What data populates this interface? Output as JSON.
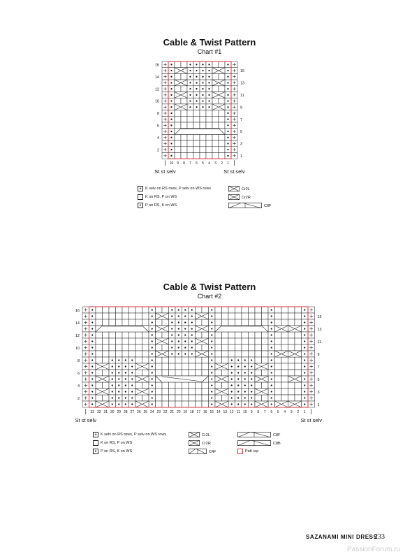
{
  "charts": [
    {
      "title": "Cable & Twist Pattern",
      "subtitle": "Chart #1",
      "columns": [
        "10",
        "9",
        "8",
        "7",
        "6",
        "5",
        "4",
        "3",
        "2",
        "1"
      ],
      "row_labels_left": [
        "16",
        "14",
        "12",
        "10",
        "8",
        "6",
        "4",
        "2"
      ],
      "row_labels_right": [
        "15",
        "13",
        "11",
        "9",
        "7",
        "5",
        "3",
        "1"
      ],
      "selv_label_left": "St st selv",
      "selv_label_right": "St st selv",
      "rows_top_to_bottom": [
        "+o..oooo..o+",
        "+o..oooo..o+",
        "+o..oooo..o+",
        "+o..oooo..o+",
        "+o..oooo..o+",
        "+o..oooo..o+",
        "+o..oooo..o+",
        "+o..oooo..o+",
        "+o........o+",
        "+o........o+",
        "+o........o+",
        "+o........o+",
        "+o........o+",
        "+o........o+",
        "+o........o+",
        "+o........o+"
      ],
      "cables": [
        {
          "row": 15,
          "from": 9,
          "to": 8,
          "type": "Cr2"
        },
        {
          "row": 15,
          "from": 3,
          "to": 2,
          "type": "Cr2"
        },
        {
          "row": 13,
          "from": 9,
          "to": 8,
          "type": "Cr2"
        },
        {
          "row": 13,
          "from": 3,
          "to": 2,
          "type": "Cr2"
        },
        {
          "row": 11,
          "from": 9,
          "to": 8,
          "type": "Cr2"
        },
        {
          "row": 11,
          "from": 3,
          "to": 2,
          "type": "Cr2"
        },
        {
          "row": 9,
          "from": 9,
          "to": 8,
          "type": "Cr2"
        },
        {
          "row": 9,
          "from": 3,
          "to": 2,
          "type": "Cr2"
        },
        {
          "row": 5,
          "from": 9,
          "to": 2,
          "type": "C8F"
        }
      ],
      "patt_rep": {
        "from": 10,
        "to": 1
      },
      "legend": [
        {
          "symbol": "selv",
          "label": "K selv on RS rows, P selv on WS rows"
        },
        {
          "symbol": "knit",
          "label": "K on RS, P on WS"
        },
        {
          "symbol": "purl",
          "label": "P on RS, K on WS"
        },
        {
          "symbol": "cr2",
          "label": "Cr2L"
        },
        {
          "symbol": "cr2",
          "label": "Cr2R"
        },
        {
          "symbol": "c8",
          "label": "C8F"
        }
      ]
    },
    {
      "title": "Cable & Twist Pattern",
      "subtitle": "Chart #2",
      "columns": [
        "33",
        "32",
        "31",
        "30",
        "29",
        "28",
        "27",
        "26",
        "25",
        "24",
        "23",
        "22",
        "21",
        "20",
        "19",
        "18",
        "17",
        "16",
        "15",
        "14",
        "13",
        "12",
        "11",
        "10",
        "9",
        "8",
        "7",
        "6",
        "5",
        "4",
        "3",
        "2",
        "1"
      ],
      "row_labels_left": [
        "16",
        "14",
        "12",
        "10",
        "8",
        "6",
        "4",
        "2"
      ],
      "row_labels_right": [
        "15",
        "13",
        "11",
        "9",
        "7",
        "5",
        "3",
        "1"
      ],
      "selv_label_left": "St st selv",
      "selv_label_right": "St st selv",
      "rows_top_to_bottom": [
        "+o........o..oooo..o........o....o+",
        "+o........o..oooo..o........o....o+",
        "+o........o..oooo..o........o....o+",
        "+o........o..oooo..o........o....o+",
        "+o........o..oooo..o........o....o+",
        "+o........o..oooo..o........o....o+",
        "+o........o..oooo..o........o....o+",
        "+o........o..oooo..o........o....o+",
        "+o..oooo..o........o..oooo..o....o+",
        "+o..oooo..o........o..oooo..o....o+",
        "+o..oooo..o........o..oooo..o....o+",
        "+o..oooo..o........o..oooo..o....o+",
        "+o..oooo..o........o..oooo..o....o+",
        "+o..oooo..o........o..oooo..o....o+",
        "+o..oooo..o........o..oooo..o....o+",
        "+o..oooo..o........o..oooo..o....o+"
      ],
      "cables": [
        {
          "row": 15,
          "from": 23,
          "to": 22,
          "type": "Cr2"
        },
        {
          "row": 15,
          "from": 17,
          "to": 16,
          "type": "Cr2"
        },
        {
          "row": 13,
          "from": 32,
          "to": 25,
          "type": "C8F"
        },
        {
          "row": 13,
          "from": 23,
          "to": 22,
          "type": "Cr2"
        },
        {
          "row": 13,
          "from": 17,
          "to": 16,
          "type": "Cr2"
        },
        {
          "row": 13,
          "from": 14,
          "to": 7,
          "type": "C8F"
        },
        {
          "row": 13,
          "from": 5,
          "to": 4,
          "type": "Cr2"
        },
        {
          "row": 13,
          "from": 3,
          "to": 2,
          "type": "Cr2"
        },
        {
          "row": 11,
          "from": 23,
          "to": 22,
          "type": "Cr2"
        },
        {
          "row": 11,
          "from": 17,
          "to": 16,
          "type": "Cr2"
        },
        {
          "row": 9,
          "from": 23,
          "to": 22,
          "type": "Cr2"
        },
        {
          "row": 9,
          "from": 17,
          "to": 16,
          "type": "Cr2"
        },
        {
          "row": 9,
          "from": 5,
          "to": 4,
          "type": "Cr2"
        },
        {
          "row": 9,
          "from": 3,
          "to": 2,
          "type": "Cr2"
        },
        {
          "row": 7,
          "from": 32,
          "to": 31,
          "type": "Cr2"
        },
        {
          "row": 7,
          "from": 26,
          "to": 25,
          "type": "Cr2"
        },
        {
          "row": 7,
          "from": 14,
          "to": 13,
          "type": "Cr2"
        },
        {
          "row": 7,
          "from": 8,
          "to": 7,
          "type": "Cr2"
        },
        {
          "row": 5,
          "from": 32,
          "to": 31,
          "type": "Cr2"
        },
        {
          "row": 5,
          "from": 26,
          "to": 25,
          "type": "Cr2"
        },
        {
          "row": 5,
          "from": 23,
          "to": 16,
          "type": "C8B"
        },
        {
          "row": 5,
          "from": 14,
          "to": 13,
          "type": "Cr2"
        },
        {
          "row": 5,
          "from": 8,
          "to": 7,
          "type": "Cr2"
        },
        {
          "row": 5,
          "from": 3,
          "to": 2,
          "type": "Cr2"
        },
        {
          "row": 3,
          "from": 32,
          "to": 31,
          "type": "Cr2"
        },
        {
          "row": 3,
          "from": 26,
          "to": 25,
          "type": "Cr2"
        },
        {
          "row": 3,
          "from": 14,
          "to": 13,
          "type": "Cr2"
        },
        {
          "row": 3,
          "from": 8,
          "to": 7,
          "type": "Cr2"
        },
        {
          "row": 1,
          "from": 32,
          "to": 31,
          "type": "Cr2"
        },
        {
          "row": 1,
          "from": 26,
          "to": 25,
          "type": "Cr2"
        },
        {
          "row": 1,
          "from": 14,
          "to": 13,
          "type": "Cr2"
        },
        {
          "row": 1,
          "from": 8,
          "to": 7,
          "type": "Cr2"
        },
        {
          "row": 1,
          "from": 5,
          "to": 4,
          "type": "Cr2"
        },
        {
          "row": 1,
          "from": 3,
          "to": 2,
          "type": "Cr2"
        }
      ],
      "patt_rep": {
        "from": 33,
        "to": 1
      },
      "legend": [
        {
          "symbol": "selv",
          "label": "K selv on RS rows, P selv on WS rows"
        },
        {
          "symbol": "knit",
          "label": "K on RS, P on WS"
        },
        {
          "symbol": "purl",
          "label": "P on RS, K on WS"
        },
        {
          "symbol": "cr2",
          "label": "Cr2L"
        },
        {
          "symbol": "cr2",
          "label": "Cr2R"
        },
        {
          "symbol": "c4",
          "label": "C4F"
        },
        {
          "symbol": "c8",
          "label": "C8F"
        },
        {
          "symbol": "c8",
          "label": "C8B"
        },
        {
          "symbol": "rep",
          "label": "Patt rep"
        }
      ]
    }
  ],
  "colors": {
    "grid": "#222222",
    "patt_rep": "#d0343c"
  },
  "footer": {
    "title": "SAZANAMI MINI DRESS",
    "page": "233",
    "watermark": "PassionForum.ru"
  }
}
